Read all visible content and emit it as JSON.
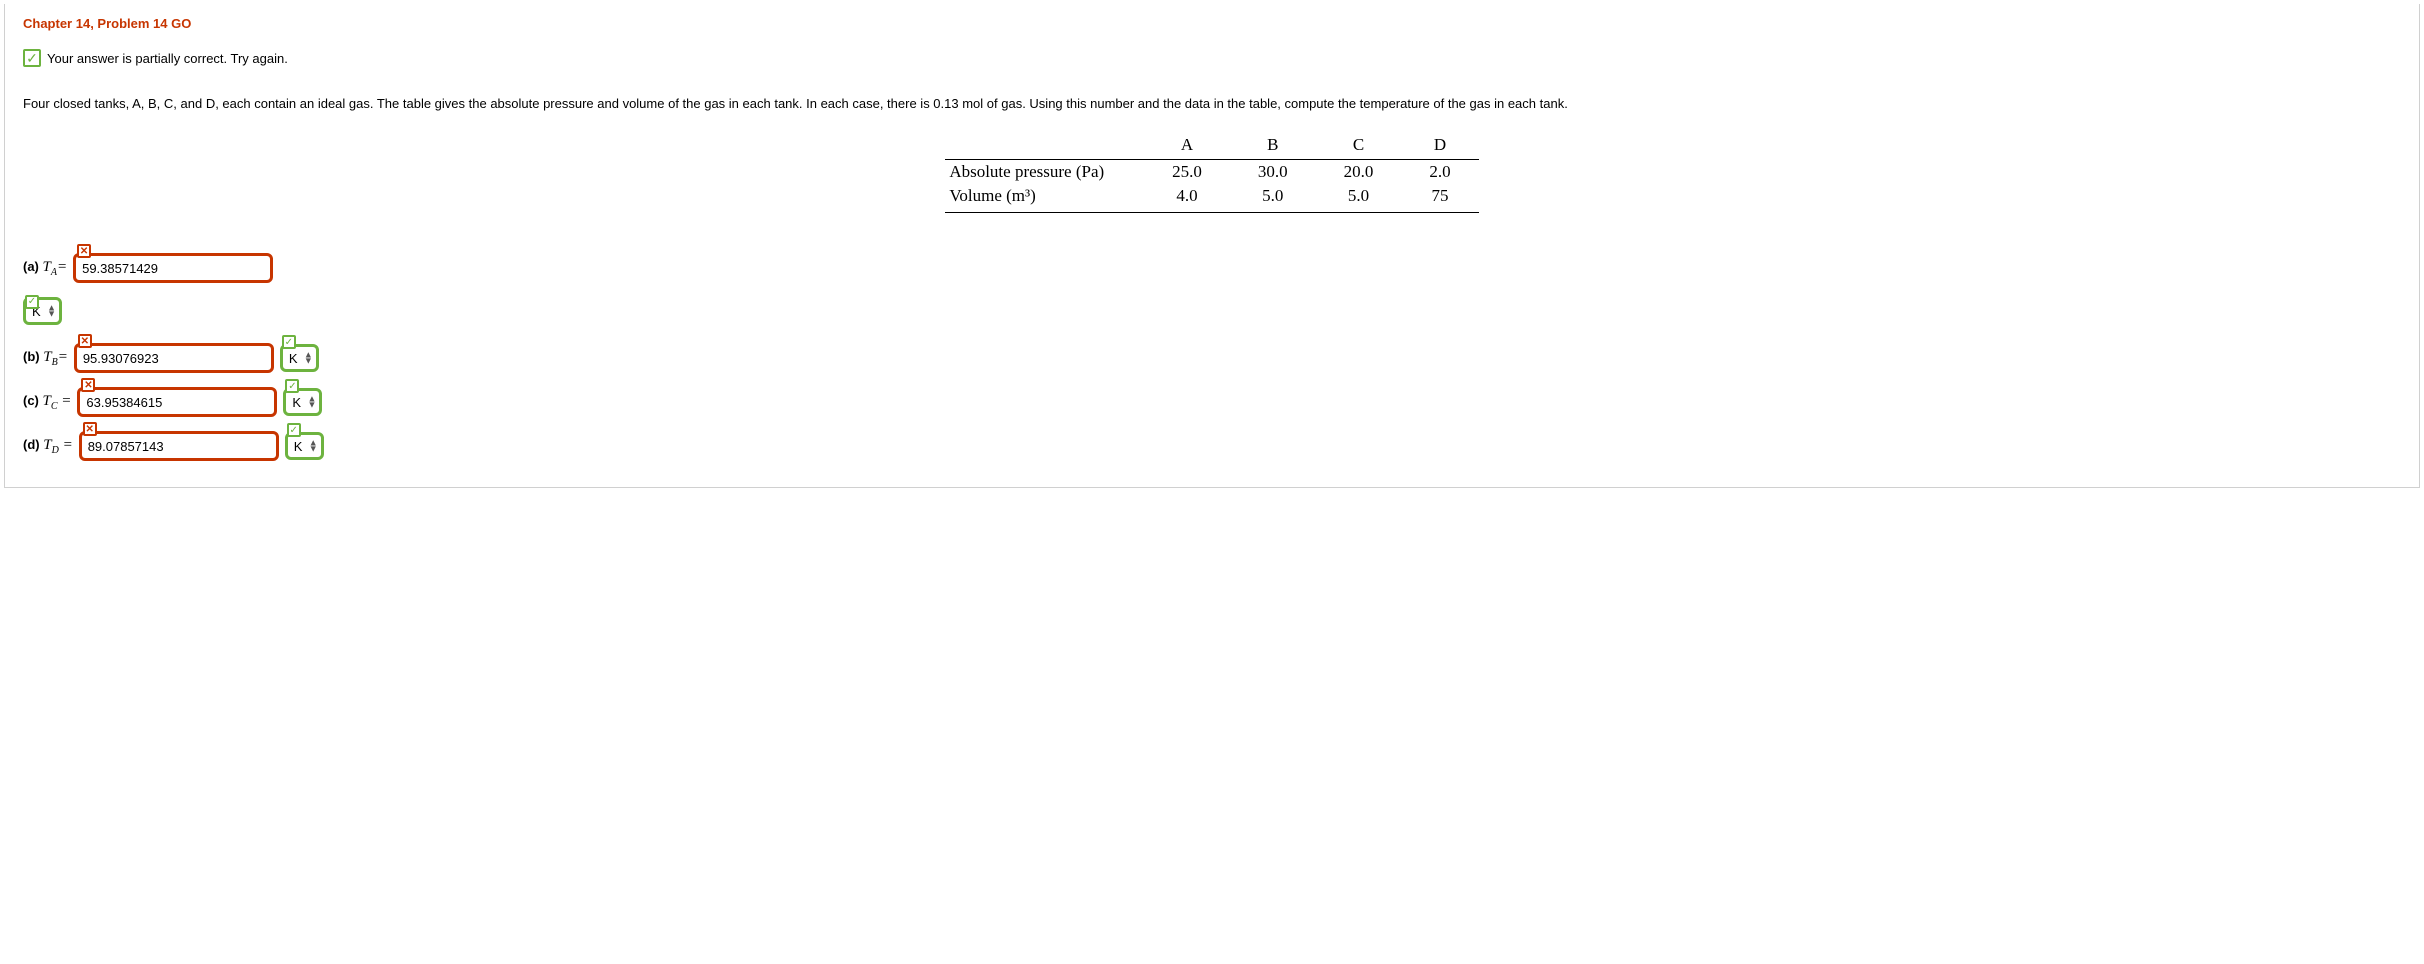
{
  "title": "Chapter 14, Problem 14 GO",
  "feedback": "Your answer is partially correct.  Try again.",
  "problem_text": "Four closed tanks, A, B, C, and D, each contain an ideal gas. The table gives the absolute pressure and volume of the gas in each tank. In each case, there is 0.13 mol of gas. Using this number and the data in the table, compute the temperature of the gas in each tank.",
  "table": {
    "columns": [
      "",
      "A",
      "B",
      "C",
      "D"
    ],
    "rows": [
      [
        "Absolute pressure (Pa)",
        "25.0",
        "30.0",
        "20.0",
        "2.0"
      ],
      [
        "Volume (m³)",
        "4.0",
        "5.0",
        "5.0",
        "75"
      ]
    ]
  },
  "answers": {
    "a": {
      "part": "(a)",
      "var": "T",
      "sub": "A",
      "value": "59.38571429",
      "value_correct": false,
      "unit": "K",
      "unit_correct": true
    },
    "b": {
      "part": "(b)",
      "var": "T",
      "sub": "B",
      "value": "95.93076923",
      "value_correct": false,
      "unit": "K",
      "unit_correct": true
    },
    "c": {
      "part": "(c)",
      "var": "T",
      "sub": "C",
      "value": "63.95384615",
      "value_correct": false,
      "unit": "K",
      "unit_correct": true
    },
    "d": {
      "part": "(d)",
      "var": "T",
      "sub": "D",
      "value": "89.07857143",
      "value_correct": false,
      "unit": "K",
      "unit_correct": true
    }
  },
  "colors": {
    "title": "#c73500",
    "incorrect_border": "#c73500",
    "correct_border": "#6db33f"
  }
}
